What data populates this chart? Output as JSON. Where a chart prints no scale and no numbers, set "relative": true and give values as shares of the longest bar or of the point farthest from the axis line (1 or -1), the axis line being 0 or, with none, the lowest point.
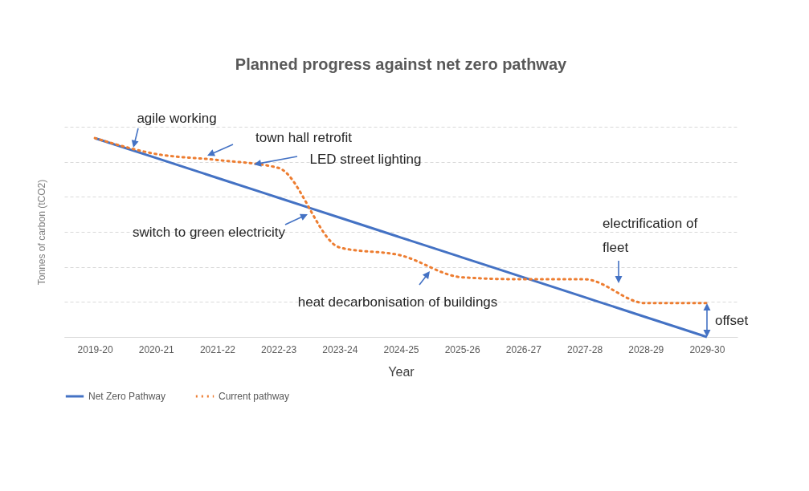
{
  "chart_data": {
    "type": "line",
    "title": "Planned progress against net zero pathway",
    "xlabel": "Year",
    "ylabel": "Tonnes of carbon (tCO2)",
    "categories": [
      "2019-20",
      "2020-21",
      "2021-22",
      "2022-23",
      "2023-24",
      "2024-25",
      "2025-26",
      "2026-27",
      "2027-28",
      "2028-29",
      "2029-30"
    ],
    "relative": true,
    "grid": "y",
    "legend": "bottom",
    "series": [
      {
        "name": "Net Zero Pathway",
        "color": "#4472c4",
        "line_style": "solid",
        "values": [
          1,
          0.9,
          0.8,
          0.7,
          0.6,
          0.5,
          0.4,
          0.3,
          0.2,
          0.1,
          0
        ]
      },
      {
        "name": "Current pathway",
        "color": "#ed7d31",
        "line_style": "dotted",
        "values": [
          1,
          0.92,
          0.89,
          0.85,
          0.45,
          0.41,
          0.3,
          0.29,
          0.29,
          0.17,
          0.17
        ]
      }
    ],
    "annotations": [
      "agile working",
      "town hall retrofit",
      "LED street lighting",
      "switch to green electricity",
      "heat decarbonisation of buildings",
      "electrification of fleet",
      "offset"
    ]
  }
}
